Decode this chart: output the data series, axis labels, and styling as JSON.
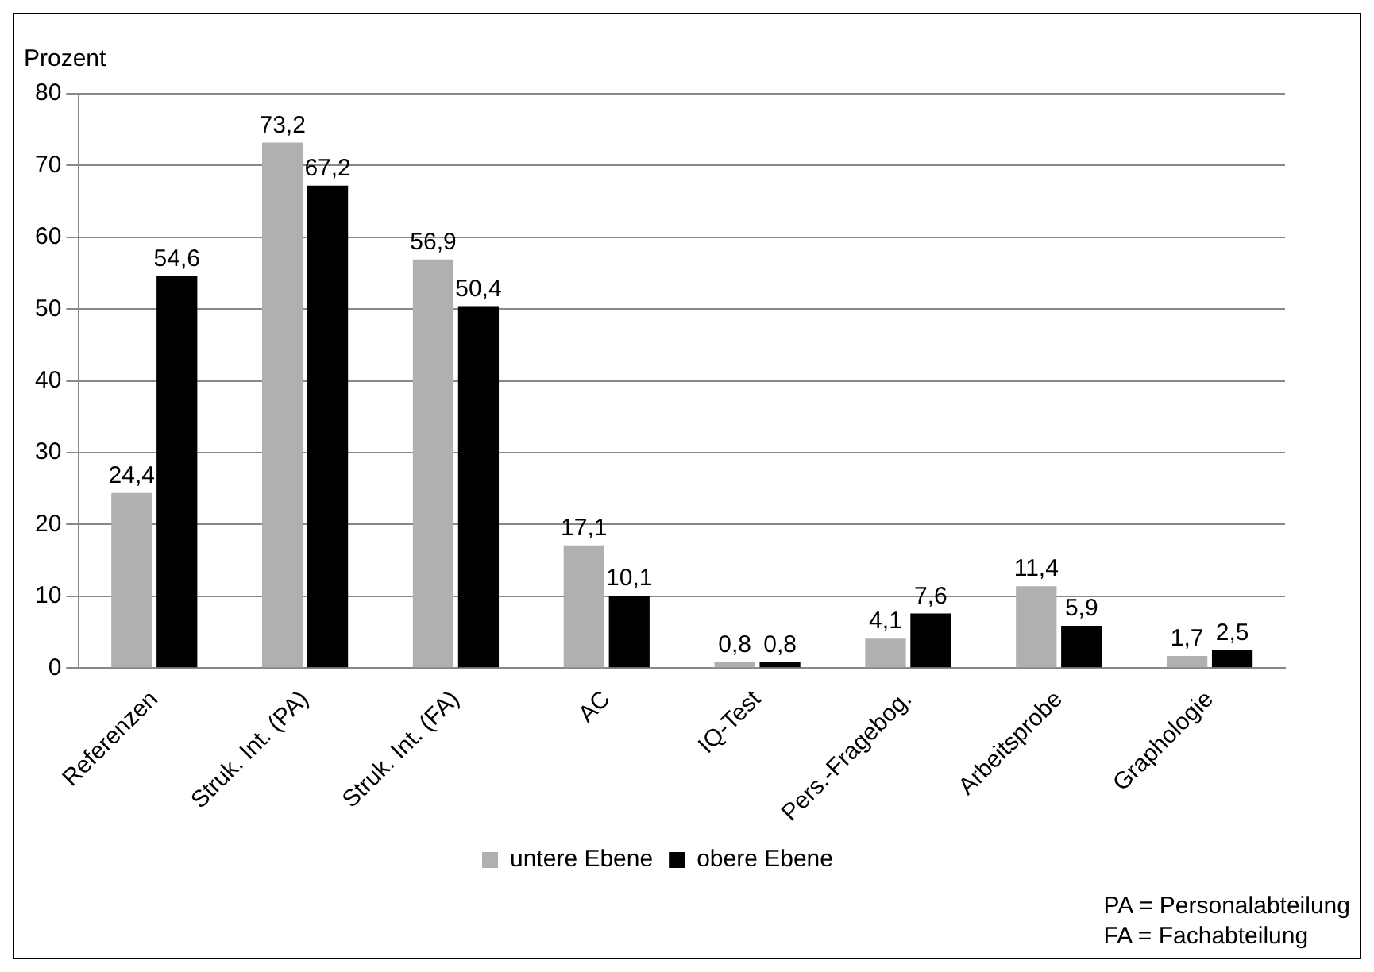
{
  "chart_data": {
    "type": "bar",
    "ylabel": "Prozent",
    "categories": [
      "Referenzen",
      "Struk. Int. (PA)",
      "Struk. Int. (FA)",
      "AC",
      "IQ-Test",
      "Pers.-Fragebog.",
      "Arbeitsprobe",
      "Graphologie"
    ],
    "series": [
      {
        "name": "untere Ebene",
        "color": "#b0b0b0",
        "values": [
          24.4,
          73.2,
          56.9,
          17.1,
          0.8,
          4.1,
          11.4,
          1.7
        ],
        "value_labels": [
          "24,4",
          "73,2",
          "56,9",
          "17,1",
          "0,8",
          "4,1",
          "11,4",
          "1,7"
        ]
      },
      {
        "name": "obere Ebene",
        "color": "#000000",
        "values": [
          54.6,
          67.2,
          50.4,
          10.1,
          0.8,
          7.6,
          5.9,
          2.5
        ],
        "value_labels": [
          "54,6",
          "67,2",
          "50,4",
          "10,1",
          "0,8",
          "7,6",
          "5,9",
          "2,5"
        ]
      }
    ],
    "ylim": [
      0,
      80
    ],
    "yticks": [
      0,
      10,
      20,
      30,
      40,
      50,
      60,
      70,
      80
    ],
    "grid": "y",
    "legend": "bottom",
    "annotations": [
      "PA = Personalabteilung",
      "FA = Fachabteilung"
    ]
  }
}
